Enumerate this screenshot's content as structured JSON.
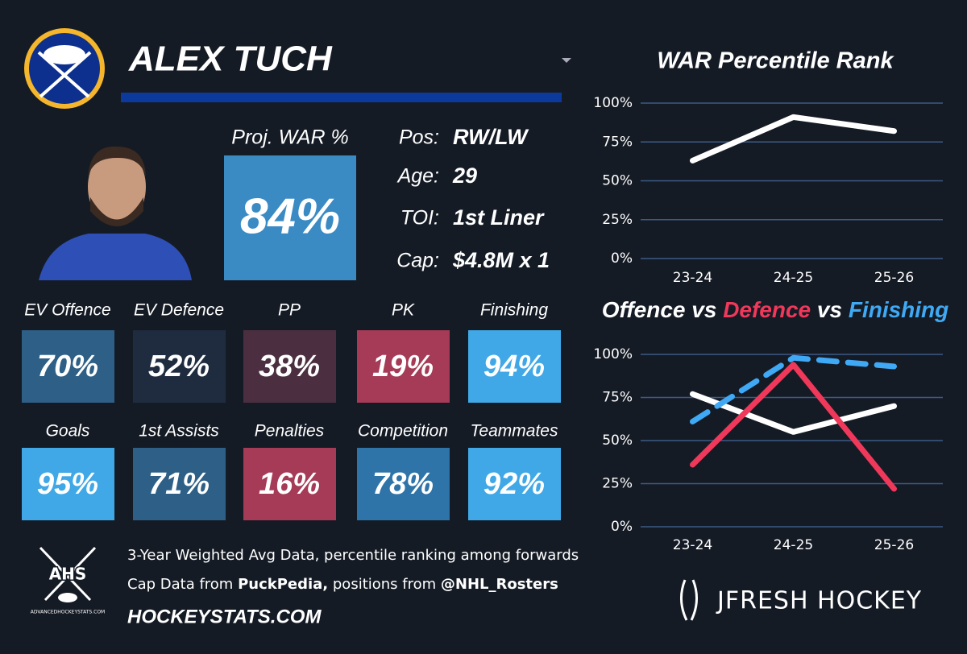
{
  "header": {
    "name": "ALEX TUCH"
  },
  "player": {
    "proj_war_label": "Proj. WAR %",
    "proj_war": "84%",
    "info": [
      {
        "label": "Pos:",
        "value": "RW/LW"
      },
      {
        "label": "Age:",
        "value": "29"
      },
      {
        "label": "TOI:",
        "value": "1st Liner"
      },
      {
        "label": "Cap:",
        "value": "$4.8M x 1"
      }
    ]
  },
  "tiles": [
    {
      "label": "EV Offence",
      "value": "70%",
      "color": "#2e5f86"
    },
    {
      "label": "EV Defence",
      "value": "52%",
      "color": "#1f2c3f"
    },
    {
      "label": "PP",
      "value": "38%",
      "color": "#4b2f40"
    },
    {
      "label": "PK",
      "value": "19%",
      "color": "#a53b56"
    },
    {
      "label": "Finishing",
      "value": "94%",
      "color": "#40a8e6"
    },
    {
      "label": "Goals",
      "value": "95%",
      "color": "#40a8e6"
    },
    {
      "label": "1st Assists",
      "value": "71%",
      "color": "#2e5f86"
    },
    {
      "label": "Penalties",
      "value": "16%",
      "color": "#a53b56"
    },
    {
      "label": "Competition",
      "value": "78%",
      "color": "#2e74a8"
    },
    {
      "label": "Teammates",
      "value": "92%",
      "color": "#40a8e6"
    }
  ],
  "footer": {
    "line1": "3-Year Weighted Avg Data, percentile ranking among forwards",
    "line2": [
      {
        "text": "Cap Data from ",
        "bold": false
      },
      {
        "text": "PuckPedia,",
        "bold": true
      },
      {
        "text": " positions from ",
        "bold": false
      },
      {
        "text": "@NHL_Rosters",
        "bold": true
      }
    ],
    "site": "HOCKEYSTATS.COM",
    "ahs": "AHS",
    "ahs_url": "ADVANCEDHOCKEYSTATS.COM",
    "brand": "JFRESH HOCKEY"
  },
  "chart_data": [
    {
      "type": "line",
      "title": "WAR Percentile Rank",
      "categories": [
        "23-24",
        "24-25",
        "25-26"
      ],
      "series": [
        {
          "color": "#ffffff",
          "values": [
            63,
            91,
            82
          ]
        }
      ],
      "ylim": [
        0,
        100
      ],
      "grid": true,
      "yticks": [
        {
          "value": 0,
          "label": "0%"
        },
        {
          "value": 25,
          "label": "25%"
        },
        {
          "value": 50,
          "label": "50%"
        },
        {
          "value": 75,
          "label": "75%"
        },
        {
          "value": 100,
          "label": "100%"
        }
      ]
    },
    {
      "type": "line",
      "title_parts": [
        {
          "text": "Offence",
          "color": "#ffffff"
        },
        {
          "text": " vs ",
          "color": "#ffffff"
        },
        {
          "text": "Defence",
          "color": "#f0385a"
        },
        {
          "text": " vs ",
          "color": "#ffffff"
        },
        {
          "text": "Finishing",
          "color": "#3fa9f5"
        }
      ],
      "categories": [
        "23-24",
        "24-25",
        "25-26"
      ],
      "series": [
        {
          "color": "#ffffff",
          "values": [
            77,
            55,
            70
          ]
        },
        {
          "color": "#f0385a",
          "values": [
            36,
            94,
            22
          ]
        },
        {
          "color": "#3fa9f5",
          "dashed": true,
          "values": [
            61,
            98,
            93
          ]
        }
      ],
      "ylim": [
        0,
        100
      ],
      "grid": true,
      "yticks": [
        {
          "value": 0,
          "label": "0%"
        },
        {
          "value": 25,
          "label": "25%"
        },
        {
          "value": 50,
          "label": "50%"
        },
        {
          "value": 75,
          "label": "75%"
        },
        {
          "value": 100,
          "label": "100%"
        }
      ]
    }
  ]
}
